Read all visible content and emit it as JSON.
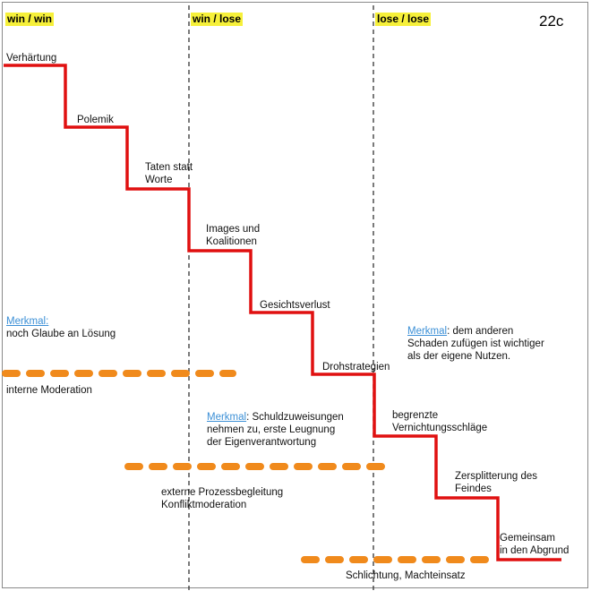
{
  "header": {
    "zones": [
      "win / win",
      "win / lose",
      "lose / lose"
    ],
    "page_number": "22c"
  },
  "stages": [
    [
      "Verhärtung"
    ],
    [
      "Polemik"
    ],
    [
      "Taten statt",
      "Worte"
    ],
    [
      "Images und",
      "Koalitionen"
    ],
    [
      "Gesichtsverlust"
    ],
    [
      "Drohstrategien"
    ],
    [
      "begrenzte",
      "Vernichtungsschläge"
    ],
    [
      "Zersplitterung des",
      "Feindes"
    ],
    [
      "Gemeinsam",
      "in den Abgrund"
    ]
  ],
  "merkmale": {
    "keyword": "Merkmal",
    "zone1_line1": "noch Glaube an Lösung",
    "zone2_line1": ": Schuldzuweisungen",
    "zone2_line2": "nehmen zu, erste Leugnung",
    "zone2_line3": "der Eigenverantwortung",
    "zone3_line1": ":  dem anderen",
    "zone3_line2": "Schaden zufügen ist wichtiger",
    "zone3_line3": "als der eigene Nutzen."
  },
  "interventions": {
    "internal": "interne Moderation",
    "external_1": "externe Prozessbegleitung",
    "external_2": "Konfliktmoderation",
    "power": "Schlichtung, Machteinsatz"
  },
  "colors": {
    "staircase": "#e01010",
    "dashes": "#f08a1c",
    "zone_highlight": "#f6f03a",
    "merkmal_link": "#3b8fd6"
  }
}
